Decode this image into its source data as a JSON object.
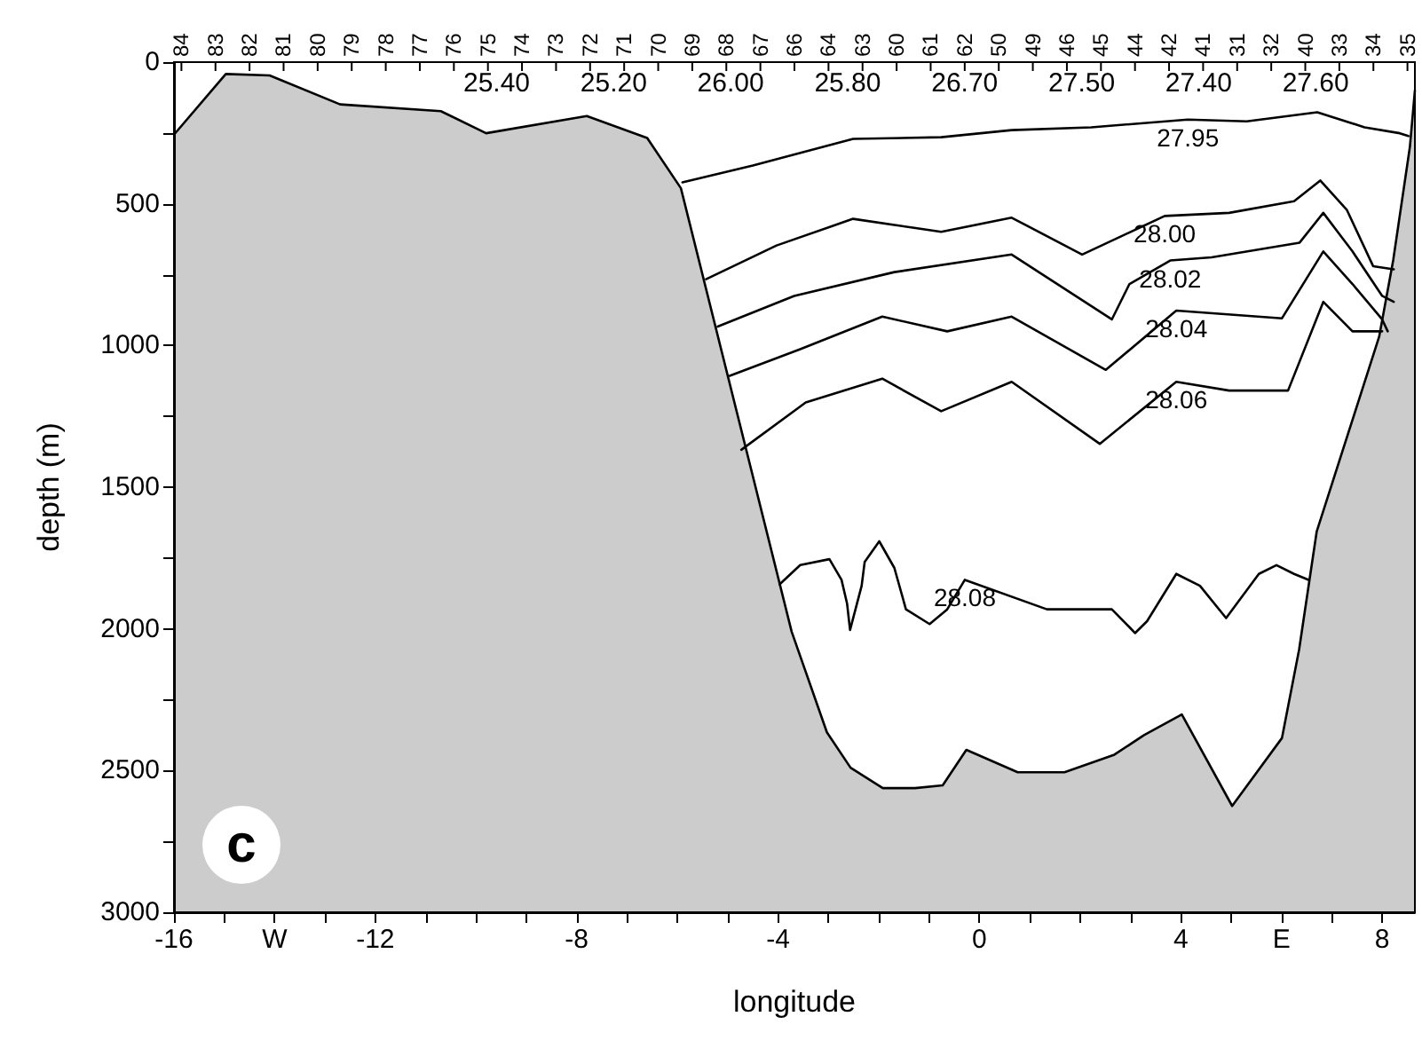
{
  "chart_data": {
    "type": "line",
    "xlabel": "longitude",
    "ylabel": "depth (m)",
    "xlim": [
      -16,
      8.65
    ],
    "ylim": [
      3000,
      0
    ],
    "xticks": [
      -16,
      {
        "value": -15,
        "label": null
      },
      {
        "value": -14,
        "label": "W"
      },
      {
        "value": -13,
        "label": null
      },
      -12,
      {
        "value": -11,
        "label": null
      },
      {
        "value": -10,
        "label": null
      },
      {
        "value": -9,
        "label": null
      },
      -8,
      {
        "value": -7,
        "label": null
      },
      {
        "value": -6,
        "label": null
      },
      {
        "value": -5,
        "label": null
      },
      -4,
      {
        "value": -3,
        "label": null
      },
      {
        "value": -2,
        "label": null
      },
      {
        "value": -1,
        "label": null
      },
      0,
      {
        "value": 1,
        "label": null
      },
      {
        "value": 2,
        "label": null
      },
      {
        "value": 3,
        "label": null
      },
      4,
      {
        "value": 5,
        "label": null
      },
      {
        "value": 6,
        "label": "E"
      },
      {
        "value": 7,
        "label": null
      },
      8
    ],
    "yticks": [
      0,
      {
        "value": 250,
        "label": null
      },
      500,
      {
        "value": 750,
        "label": null
      },
      1000,
      {
        "value": 1250,
        "label": null
      },
      1500,
      {
        "value": 1750,
        "label": null
      },
      2000,
      {
        "value": 2250,
        "label": null
      },
      2500,
      {
        "value": 2750,
        "label": null
      },
      3000
    ],
    "grid": false,
    "legend": false,
    "marker": "none",
    "line_style": "solid",
    "series": [
      {
        "color": "#000000",
        "x": [
          -16,
          -14.97,
          -14.1,
          -12.7,
          -10.7,
          -9.8,
          -7.8,
          -6.6,
          -5.93,
          -3.73,
          -3.03,
          -2.56,
          -1.92,
          -1.28,
          -0.73,
          -0.26,
          0.76,
          1.69,
          2.68,
          3.27,
          4.02,
          5.02,
          6.01,
          6.35,
          6.7,
          7.94,
          8.22,
          8.55,
          8.65
        ],
        "values": [
          256,
          42,
          47,
          149,
          173,
          251,
          190,
          268,
          445,
          2010,
          2365,
          2490,
          2562,
          2562,
          2552,
          2427,
          2506,
          2506,
          2444,
          2375,
          2302,
          2625,
          2385,
          2073,
          1656,
          969,
          698,
          300,
          100
        ],
        "lower": [
          256,
          42,
          47,
          149,
          173,
          251,
          190,
          268,
          445,
          2010,
          2365,
          2490,
          2562,
          2562,
          2552,
          2427,
          2506,
          2506,
          2444,
          2375,
          2302,
          2625,
          2385,
          2073,
          1656,
          969,
          698,
          300,
          100
        ],
        "upper": [
          3000,
          3000,
          3000,
          3000,
          3000,
          3000,
          3000,
          3000,
          3000,
          3000,
          3000,
          3000,
          3000,
          3000,
          3000,
          3000,
          3000,
          3000,
          3000,
          3000,
          3000,
          3000,
          3000,
          3000,
          3000,
          3000,
          3000,
          3000,
          3000
        ]
      },
      {
        "name": "27.95",
        "color": "#000000",
        "x": [
          -5.9,
          -4.5,
          -2.51,
          -0.76,
          0.64,
          2.22,
          4.14,
          5.31,
          6.71,
          7.65,
          8.35,
          8.52
        ],
        "values": [
          424,
          365,
          271,
          265,
          240,
          230,
          203,
          209,
          177,
          230,
          251,
          261
        ]
      },
      {
        "name": "28.00",
        "color": "#000000",
        "x": [
          -5.43,
          -4.03,
          -2.51,
          -0.76,
          0.64,
          2.04,
          3.68,
          4.96,
          6.25,
          6.77,
          7.3,
          7.82,
          8.23
        ],
        "values": [
          766,
          647,
          553,
          599,
          549,
          679,
          543,
          532,
          491,
          418,
          522,
          720,
          731
        ]
      },
      {
        "name": "28.02",
        "color": "#000000",
        "x": [
          -5.2,
          -3.68,
          -1.69,
          0.64,
          2.63,
          2.98,
          3.79,
          4.61,
          6.36,
          6.83,
          7.41,
          8.0,
          8.23
        ],
        "values": [
          933,
          825,
          741,
          679,
          908,
          783,
          700,
          689,
          637,
          532,
          668,
          825,
          846
        ]
      },
      {
        "name": "28.04",
        "color": "#000000",
        "x": [
          -4.96,
          -3.56,
          -1.93,
          -0.64,
          0.64,
          2.51,
          3.91,
          6.01,
          6.83,
          7.41,
          8.0,
          8.11
        ],
        "values": [
          1107,
          1013,
          898,
          950,
          898,
          1086,
          877,
          904,
          668,
          783,
          908,
          950
        ]
      },
      {
        "name": "28.06",
        "color": "#000000",
        "x": [
          -4.73,
          -3.45,
          -1.93,
          -0.76,
          0.64,
          2.39,
          3.91,
          4.96,
          6.13,
          6.83,
          7.41,
          8.0
        ],
        "values": [
          1368,
          1201,
          1117,
          1232,
          1128,
          1347,
          1128,
          1159,
          1159,
          846,
          950,
          950
        ]
      },
      {
        "name": "28.08",
        "color": "#000000",
        "x": [
          -3.97,
          -3.56,
          -2.98,
          -2.74,
          -2.63,
          -2.57,
          -2.34,
          -2.28,
          -1.99,
          -1.69,
          -1.46,
          -0.99,
          -0.64,
          -0.29,
          1.34,
          2.63,
          2.98,
          3.09,
          3.33,
          3.91,
          4.38,
          4.9,
          5.55,
          5.9,
          6.25,
          6.54
        ],
        "values": [
          1843,
          1775,
          1754,
          1827,
          1910,
          2004,
          1848,
          1764,
          1691,
          1785,
          1931,
          1983,
          1931,
          1827,
          1931,
          1931,
          1994,
          2015,
          1973,
          1806,
          1848,
          1962,
          1806,
          1775,
          1806,
          1827
        ]
      }
    ],
    "annotations": [
      "84 83 82 81 80 79 78 77 76 75 74 73 72 71 70 69 68 67 66 64 63 60 61 62 50 49 46 45 44 42 41 31 32 40 33 34 35",
      "25.40",
      "25.20",
      "26.00",
      "25.80",
      "26.70",
      "27.50",
      "27.40",
      "27.60",
      "c"
    ]
  }
}
